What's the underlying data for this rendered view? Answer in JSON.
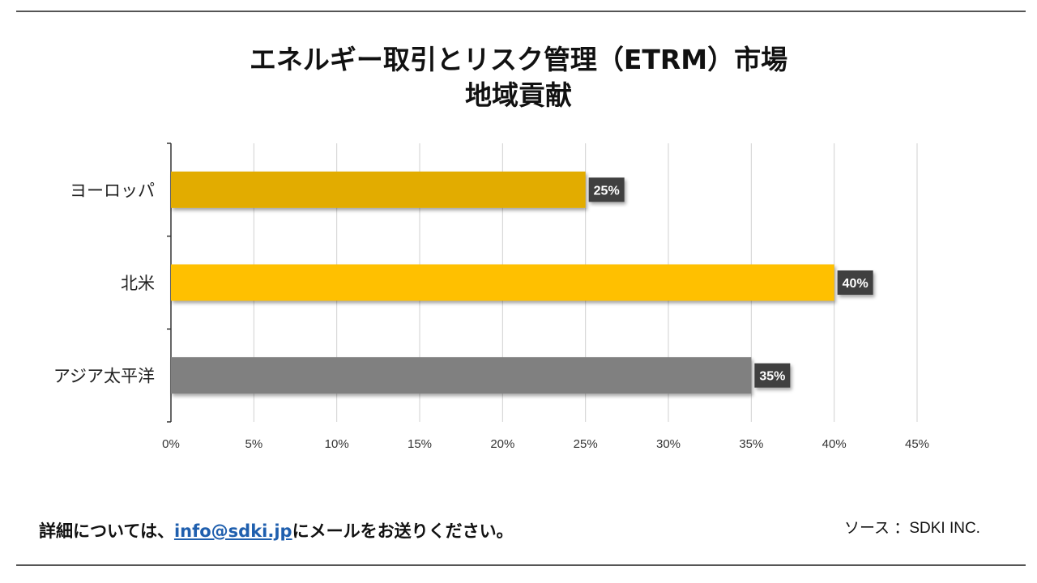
{
  "title_line1": "エネルギー取引とリスク管理（ETRM）市場",
  "title_line2": "地域貢献",
  "chart_data": {
    "type": "bar",
    "orientation": "horizontal",
    "categories": [
      "ヨーロッパ",
      "北米",
      "アジア太平洋"
    ],
    "values": [
      25,
      40,
      35
    ],
    "data_labels": [
      "25%",
      "40%",
      "35%"
    ],
    "colors": [
      "#E2AC00",
      "#FFC000",
      "#808080"
    ],
    "xlim": [
      0,
      45
    ],
    "xticks": [
      0,
      5,
      10,
      15,
      20,
      25,
      30,
      35,
      40,
      45
    ],
    "xtick_labels": [
      "0%",
      "5%",
      "10%",
      "15%",
      "20%",
      "25%",
      "30%",
      "35%",
      "40%",
      "45%"
    ],
    "grid": "vertical",
    "xlabel": "",
    "ylabel": ""
  },
  "footer": {
    "text_before": "詳細については、",
    "email": "info@sdki.jp",
    "text_after": "にメールをお送りください。",
    "source": "ソース ：SDKI INC."
  }
}
